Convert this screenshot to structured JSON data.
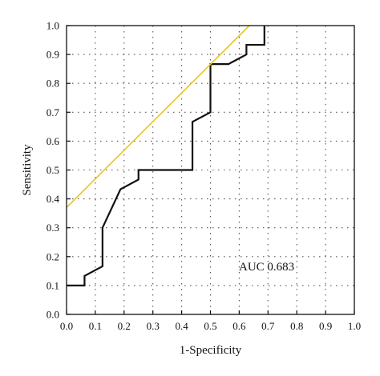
{
  "chart_data": {
    "type": "line",
    "xlabel": "1-Specificity",
    "ylabel": "Sensitivity",
    "xlim": [
      0.0,
      1.0
    ],
    "ylim": [
      0.0,
      1.0
    ],
    "x_ticks": [
      "0.0",
      "0.1",
      "0.2",
      "0.3",
      "0.4",
      "0.5",
      "0.6",
      "0.7",
      "0.8",
      "0.9",
      "1.0"
    ],
    "y_ticks": [
      "0.0",
      "0.1",
      "0.2",
      "0.3",
      "0.4",
      "0.5",
      "0.6",
      "0.7",
      "0.8",
      "0.9",
      "1.0"
    ],
    "grid": true,
    "annotation": "AUC 0.683",
    "series": [
      {
        "role": "roc-curve",
        "color": "#111111",
        "x": [
          0.0,
          0.0625,
          0.0625,
          0.0625,
          0.125,
          0.125,
          0.125,
          0.1875,
          0.25,
          0.25,
          0.4375,
          0.4375,
          0.5,
          0.5,
          0.5625,
          0.625,
          0.625,
          0.6875,
          0.6875
        ],
        "y": [
          0.1,
          0.1,
          0.1333,
          0.1333,
          0.1667,
          0.3,
          0.3,
          0.4333,
          0.4667,
          0.5,
          0.5,
          0.6667,
          0.7,
          0.8667,
          0.8667,
          0.9,
          0.9333,
          0.9333,
          1.0
        ]
      },
      {
        "role": "tangent-line",
        "color": "#e8c619",
        "x": [
          0.0,
          0.635
        ],
        "y": [
          0.37,
          1.0
        ]
      }
    ]
  }
}
